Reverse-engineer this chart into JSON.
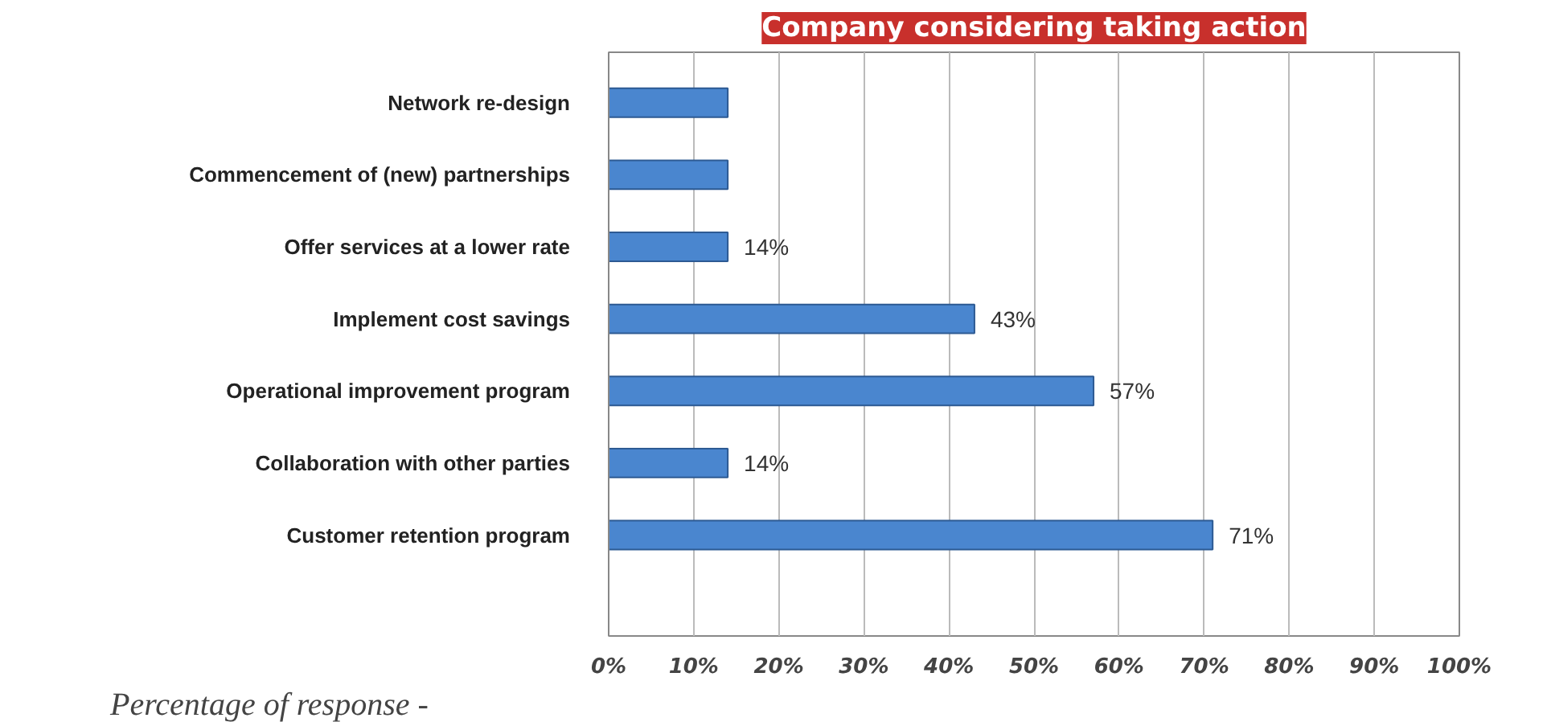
{
  "chart_data": {
    "type": "bar",
    "orientation": "horizontal",
    "title": "Company considering taking action",
    "xlabel": "Percentage of response -",
    "categories": [
      "Network re-design",
      "Commencement of (new) partnerships",
      "Offer services at a lower rate",
      "Implement cost savings",
      "Operational improvement program",
      "Collaboration with other parties",
      "Customer retention program"
    ],
    "values": [
      14,
      14,
      14,
      43,
      57,
      14,
      71
    ],
    "value_labels": [
      null,
      null,
      "14%",
      "43%",
      "57%",
      "14%",
      "71%"
    ],
    "color": "#4a86cf",
    "xlim": [
      0,
      100
    ],
    "xticks": [
      {
        "value": 0,
        "label": "0%"
      },
      {
        "value": 10,
        "label": "10%"
      },
      {
        "value": 20,
        "label": "20%"
      },
      {
        "value": 30,
        "label": "30%"
      },
      {
        "value": 40,
        "label": "40%"
      },
      {
        "value": 50,
        "label": "50%"
      },
      {
        "value": 60,
        "label": "60%"
      },
      {
        "value": 70,
        "label": "70%"
      },
      {
        "value": 80,
        "label": "80%"
      },
      {
        "value": 90,
        "label": "90%"
      },
      {
        "value": 100,
        "label": "100%"
      }
    ],
    "grid": "x"
  }
}
